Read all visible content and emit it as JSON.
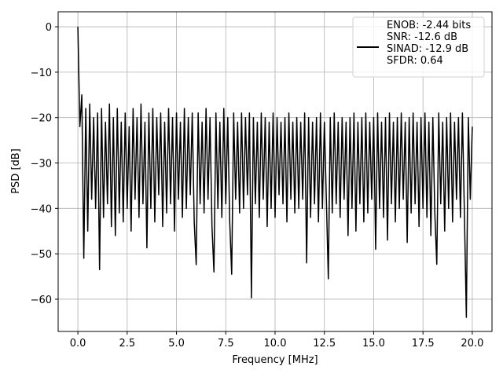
{
  "chart_data": {
    "type": "line",
    "xlabel": "Frequency [MHz]",
    "ylabel": "PSD [dB]",
    "x": [
      0,
      0.1,
      0.2,
      0.3,
      0.4,
      0.5,
      0.6,
      0.7,
      0.8,
      0.9,
      1,
      1.1,
      1.2,
      1.3,
      1.4,
      1.5,
      1.6,
      1.7,
      1.8,
      1.9,
      2,
      2.1,
      2.2,
      2.3,
      2.4,
      2.5,
      2.6,
      2.7,
      2.8,
      2.9,
      3,
      3.1,
      3.2,
      3.3,
      3.4,
      3.5,
      3.6,
      3.7,
      3.8,
      3.9,
      4,
      4.1,
      4.2,
      4.3,
      4.4,
      4.5,
      4.6,
      4.7,
      4.8,
      4.9,
      5,
      5.1,
      5.2,
      5.3,
      5.4,
      5.5,
      5.6,
      5.7,
      5.8,
      5.9,
      6,
      6.1,
      6.2,
      6.3,
      6.4,
      6.5,
      6.6,
      6.7,
      6.8,
      6.9,
      7,
      7.1,
      7.2,
      7.3,
      7.4,
      7.5,
      7.6,
      7.7,
      7.8,
      7.9,
      8,
      8.1,
      8.2,
      8.3,
      8.4,
      8.5,
      8.6,
      8.7,
      8.8,
      8.9,
      9,
      9.1,
      9.2,
      9.3,
      9.4,
      9.5,
      9.6,
      9.7,
      9.8,
      9.9,
      10,
      10.1,
      10.2,
      10.3,
      10.4,
      10.5,
      10.6,
      10.7,
      10.8,
      10.9,
      11,
      11.1,
      11.2,
      11.3,
      11.4,
      11.5,
      11.6,
      11.7,
      11.8,
      11.9,
      12,
      12.1,
      12.2,
      12.3,
      12.4,
      12.5,
      12.6,
      12.7,
      12.8,
      12.9,
      13,
      13.1,
      13.2,
      13.3,
      13.4,
      13.5,
      13.6,
      13.7,
      13.8,
      13.9,
      14,
      14.1,
      14.2,
      14.3,
      14.4,
      14.5,
      14.6,
      14.7,
      14.8,
      14.9,
      15,
      15.1,
      15.2,
      15.3,
      15.4,
      15.5,
      15.6,
      15.7,
      15.8,
      15.9,
      16,
      16.1,
      16.2,
      16.3,
      16.4,
      16.5,
      16.6,
      16.7,
      16.8,
      16.9,
      17,
      17.1,
      17.2,
      17.3,
      17.4,
      17.5,
      17.6,
      17.7,
      17.8,
      17.9,
      18,
      18.1,
      18.2,
      18.3,
      18.4,
      18.5,
      18.6,
      18.7,
      18.8,
      18.9,
      19,
      19.1,
      19.2,
      19.3,
      19.4,
      19.5,
      19.6,
      19.7,
      19.8,
      19.9,
      20
    ],
    "series": [
      {
        "name": "ENOB: -2.44 bits\nSNR: -12.6 dB\nSINAD: -12.9 dB\nSFDR: 0.64",
        "color": "#000000",
        "values": [
          0,
          -22,
          -15,
          -51,
          -18,
          -45,
          -17,
          -38,
          -20,
          -40,
          -19,
          -53.5,
          -18,
          -42,
          -21,
          -39,
          -17,
          -44,
          -20,
          -46,
          -18,
          -41,
          -21,
          -43,
          -19,
          -40,
          -22,
          -45,
          -18,
          -38,
          -20,
          -42,
          -17,
          -39,
          -21,
          -48.7,
          -19,
          -40,
          -18,
          -43,
          -20,
          -37,
          -19,
          -44,
          -21,
          -41,
          -18,
          -39,
          -20,
          -45,
          -19,
          -38,
          -21,
          -42,
          -18,
          -40,
          -20,
          -37,
          -19,
          -43,
          -52.4,
          -19,
          -39,
          -21,
          -41,
          -18,
          -38,
          -20,
          -44,
          -54,
          -19,
          -40,
          -21,
          -42,
          -18,
          -39,
          -20,
          -43,
          -54.5,
          -19,
          -38,
          -21,
          -41,
          -19,
          -40,
          -20,
          -37,
          -19,
          -59.7,
          -20,
          -39,
          -21,
          -42,
          -19,
          -38,
          -20,
          -44,
          -21,
          -40,
          -19,
          -42,
          -20,
          -37,
          -21,
          -39,
          -20,
          -43,
          -19,
          -38,
          -21,
          -41,
          -20,
          -40,
          -21,
          -38,
          -19,
          -52,
          -20,
          -42,
          -21,
          -39,
          -20,
          -43,
          -19,
          -40,
          -21,
          -38,
          -55.5,
          -20,
          -41,
          -19,
          -39,
          -21,
          -42,
          -20,
          -38,
          -21,
          -46,
          -20,
          -40,
          -19,
          -45,
          -21,
          -39,
          -20,
          -43,
          -19,
          -41,
          -21,
          -38,
          -20,
          -49,
          -19,
          -40,
          -21,
          -42,
          -20,
          -47,
          -19,
          -39,
          -21,
          -43,
          -20,
          -40,
          -19,
          -38,
          -21,
          -47.5,
          -20,
          -41,
          -19,
          -39,
          -21,
          -44,
          -20,
          -40,
          -19,
          -42,
          -21,
          -46,
          -20,
          -41,
          -52.3,
          -19,
          -39,
          -21,
          -45,
          -20,
          -40,
          -19,
          -43,
          -21,
          -38,
          -20,
          -42,
          -19,
          -41,
          -64,
          -20,
          -38,
          -22
        ]
      }
    ],
    "xlim": [
      -1,
      21
    ],
    "ylim": [
      -67.1,
      3.3
    ],
    "xticks": [
      {
        "value": 0,
        "label": "0.0"
      },
      {
        "value": 2.5,
        "label": "2.5"
      },
      {
        "value": 5,
        "label": "5.0"
      },
      {
        "value": 7.5,
        "label": "7.5"
      },
      {
        "value": 10,
        "label": "10.0"
      },
      {
        "value": 12.5,
        "label": "12.5"
      },
      {
        "value": 15,
        "label": "15.0"
      },
      {
        "value": 17.5,
        "label": "17.5"
      },
      {
        "value": 20,
        "label": "20.0"
      }
    ],
    "yticks": [
      0,
      {
        "value": -10,
        "label": "−10"
      },
      {
        "value": -20,
        "label": "−20"
      },
      {
        "value": -30,
        "label": "−30"
      },
      {
        "value": -40,
        "label": "−40"
      },
      {
        "value": -50,
        "label": "−50"
      },
      {
        "value": -60,
        "label": "−60"
      }
    ],
    "grid": true,
    "legend": "upper right"
  }
}
